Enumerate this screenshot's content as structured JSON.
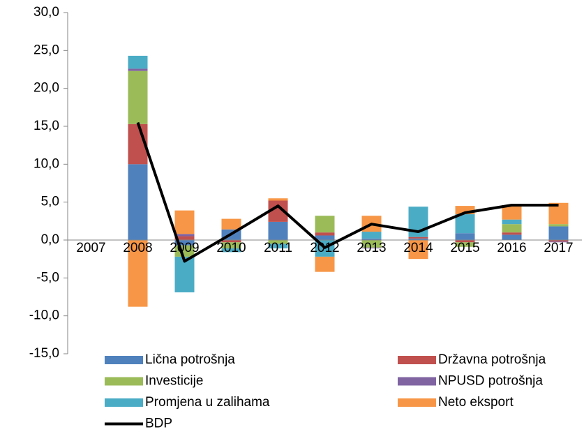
{
  "chart_data": {
    "type": "bar",
    "categories": [
      "2007",
      "2008",
      "2009",
      "2010",
      "2011",
      "2012",
      "2013",
      "2014",
      "2015",
      "2016",
      "2017"
    ],
    "series": [
      {
        "name": "Lična potrošnja",
        "color": "#4f81bd",
        "values": [
          null,
          10.0,
          -0.7,
          1.4,
          2.4,
          0.6,
          0.2,
          0.2,
          0.9,
          0.7,
          1.8
        ]
      },
      {
        "name": "Državna potrošnja",
        "color": "#c0504d",
        "values": [
          null,
          5.3,
          0.5,
          -0.3,
          2.8,
          0.4,
          0.0,
          0.2,
          -0.3,
          0.3,
          -0.2
        ]
      },
      {
        "name": "Investicije",
        "color": "#9bbb59",
        "values": [
          null,
          7.0,
          -1.5,
          -0.8,
          -0.5,
          2.2,
          -1.0,
          0.0,
          -0.6,
          1.1,
          0.3
        ]
      },
      {
        "name": "NPUSD potrošnja",
        "color": "#8064a2",
        "values": [
          null,
          0.3,
          0.3,
          0.0,
          0.0,
          0.0,
          -0.1,
          0.0,
          0.0,
          0.0,
          -0.1
        ]
      },
      {
        "name": "Promjena u zalihama",
        "color": "#4bacc6",
        "values": [
          null,
          1.7,
          -4.7,
          -0.5,
          -0.6,
          -2.2,
          0.9,
          4.0,
          2.5,
          0.6,
          0.0
        ]
      },
      {
        "name": "Neto eksport",
        "color": "#f79646",
        "values": [
          null,
          -8.8,
          3.1,
          1.4,
          0.3,
          -2.0,
          2.1,
          -2.5,
          1.1,
          1.9,
          2.8
        ]
      },
      {
        "name": "BDP",
        "color": "#000000",
        "type": "line",
        "values": [
          null,
          15.5,
          -2.8,
          0.8,
          4.5,
          -1.0,
          2.1,
          1.1,
          3.6,
          4.6,
          4.6
        ]
      }
    ],
    "ylim": [
      -15,
      30
    ],
    "yticks": [
      {
        "value": -15,
        "label": "-15,0"
      },
      {
        "value": -10,
        "label": "-10,0"
      },
      {
        "value": -5,
        "label": "-5,0"
      },
      {
        "value": 0,
        "label": "0,0"
      },
      {
        "value": 5,
        "label": "5,0"
      },
      {
        "value": 10,
        "label": "10,0"
      },
      {
        "value": 15,
        "label": "15,0"
      },
      {
        "value": 20,
        "label": "20,0"
      },
      {
        "value": 25,
        "label": "25,0"
      },
      {
        "value": 30,
        "label": "30,0"
      }
    ]
  }
}
